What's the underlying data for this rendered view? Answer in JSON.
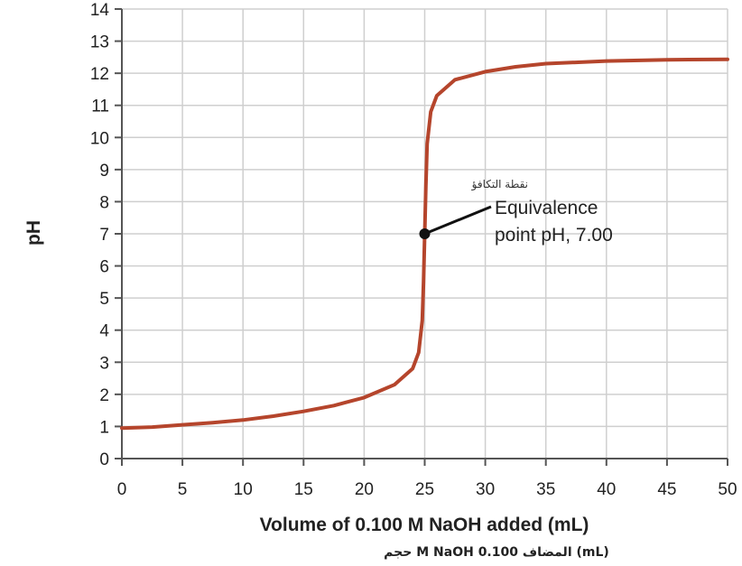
{
  "chart_data": {
    "type": "line",
    "xlabel": "Volume of 0.100 M NaOH added (mL)",
    "xlabel_secondary": "(mL)  المضاف  0.100  M NaOH حجم",
    "ylabel": "pH",
    "xlim": [
      0,
      50
    ],
    "ylim": [
      0,
      14
    ],
    "x_ticks": [
      "0",
      "5",
      "10",
      "15",
      "20",
      "25",
      "30",
      "35",
      "40",
      "45",
      "50"
    ],
    "y_ticks": [
      "0",
      "1",
      "2",
      "3",
      "4",
      "5",
      "6",
      "7",
      "8",
      "9",
      "10",
      "11",
      "12",
      "13",
      "14"
    ],
    "grid": true,
    "colors": {
      "curve": "#b5452c",
      "grid": "#cfcfcf",
      "axis": "#555555",
      "marker": "#111111"
    },
    "series": [
      {
        "x": [
          0,
          2.5,
          5,
          7.5,
          10,
          12.5,
          15,
          17.5,
          20,
          22.5,
          24,
          24.5,
          24.8,
          24.9,
          25,
          25.1,
          25.2,
          25.5,
          26,
          27.5,
          30,
          32.5,
          35,
          40,
          45,
          50
        ],
        "y": [
          0.95,
          0.98,
          1.05,
          1.12,
          1.2,
          1.32,
          1.47,
          1.65,
          1.9,
          2.3,
          2.8,
          3.3,
          4.3,
          5.5,
          7.0,
          8.5,
          9.8,
          10.8,
          11.3,
          11.8,
          12.05,
          12.2,
          12.3,
          12.38,
          12.42,
          12.43
        ]
      }
    ],
    "annotations": [
      {
        "point": [
          25,
          7.0
        ],
        "text_ar": "نقطة التكافؤ",
        "text_lines": [
          "Equivalence",
          "point pH, 7.00"
        ]
      }
    ]
  }
}
